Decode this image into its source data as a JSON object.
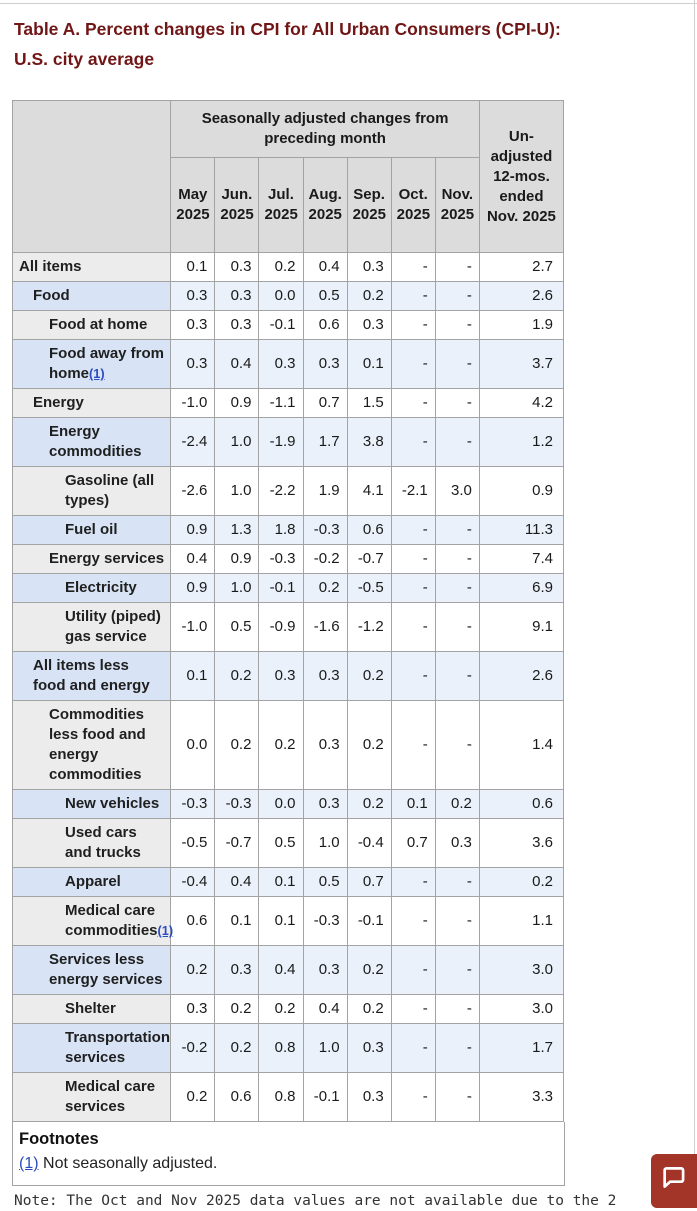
{
  "page": {
    "title_line1": "Table A. Percent changes in CPI for All Urban Consumers (CPI-U):",
    "title_line2": "U.S. city average",
    "note_line": "Note: The Oct and Nov 2025 data values are not available due to the 2"
  },
  "table": {
    "header": {
      "group_label": "Seasonally adjusted changes from preceding month",
      "unadjusted_label": "Un-adjusted 12-mos. ended Nov. 2025",
      "months": [
        "May 2025",
        "Jun. 2025",
        "Jul. 2025",
        "Aug. 2025",
        "Sep. 2025",
        "Oct. 2025",
        "Nov. 2025"
      ]
    },
    "rows": [
      {
        "label": "All items",
        "indent": 0,
        "values": [
          "0.1",
          "0.3",
          "0.2",
          "0.4",
          "0.3",
          "-",
          "-"
        ],
        "yoy": "2.7"
      },
      {
        "label": "Food",
        "indent": 1,
        "values": [
          "0.3",
          "0.3",
          "0.0",
          "0.5",
          "0.2",
          "-",
          "-"
        ],
        "yoy": "2.6"
      },
      {
        "label": "Food at home",
        "indent": 2,
        "values": [
          "0.3",
          "0.3",
          "-0.1",
          "0.6",
          "0.3",
          "-",
          "-"
        ],
        "yoy": "1.9"
      },
      {
        "label": "Food away from home",
        "footnote_ref": "(1)",
        "indent": 2,
        "values": [
          "0.3",
          "0.4",
          "0.3",
          "0.3",
          "0.1",
          "-",
          "-"
        ],
        "yoy": "3.7"
      },
      {
        "label": "Energy",
        "indent": 1,
        "values": [
          "-1.0",
          "0.9",
          "-1.1",
          "0.7",
          "1.5",
          "-",
          "-"
        ],
        "yoy": "4.2"
      },
      {
        "label": "Energy commodities",
        "indent": 2,
        "values": [
          "-2.4",
          "1.0",
          "-1.9",
          "1.7",
          "3.8",
          "-",
          "-"
        ],
        "yoy": "1.2"
      },
      {
        "label": "Gasoline (all types)",
        "indent": 3,
        "values": [
          "-2.6",
          "1.0",
          "-2.2",
          "1.9",
          "4.1",
          "-2.1",
          "3.0"
        ],
        "yoy": "0.9"
      },
      {
        "label": "Fuel oil",
        "indent": 3,
        "values": [
          "0.9",
          "1.3",
          "1.8",
          "-0.3",
          "0.6",
          "-",
          "-"
        ],
        "yoy": "11.3"
      },
      {
        "label": "Energy services",
        "indent": 2,
        "values": [
          "0.4",
          "0.9",
          "-0.3",
          "-0.2",
          "-0.7",
          "-",
          "-"
        ],
        "yoy": "7.4"
      },
      {
        "label": "Electricity",
        "indent": 3,
        "values": [
          "0.9",
          "1.0",
          "-0.1",
          "0.2",
          "-0.5",
          "-",
          "-"
        ],
        "yoy": "6.9"
      },
      {
        "label": "Utility (piped) gas service",
        "indent": 3,
        "values": [
          "-1.0",
          "0.5",
          "-0.9",
          "-1.6",
          "-1.2",
          "-",
          "-"
        ],
        "yoy": "9.1"
      },
      {
        "label": "All items less food and energy",
        "indent": 1,
        "values": [
          "0.1",
          "0.2",
          "0.3",
          "0.3",
          "0.2",
          "-",
          "-"
        ],
        "yoy": "2.6"
      },
      {
        "label": "Commodities less food and energy commodities",
        "indent": 2,
        "values": [
          "0.0",
          "0.2",
          "0.2",
          "0.3",
          "0.2",
          "-",
          "-"
        ],
        "yoy": "1.4"
      },
      {
        "label": "New vehicles",
        "indent": 3,
        "values": [
          "-0.3",
          "-0.3",
          "0.0",
          "0.3",
          "0.2",
          "0.1",
          "0.2"
        ],
        "yoy": "0.6"
      },
      {
        "label": "Used cars and trucks",
        "indent": 3,
        "values": [
          "-0.5",
          "-0.7",
          "0.5",
          "1.0",
          "-0.4",
          "0.7",
          "0.3"
        ],
        "yoy": "3.6"
      },
      {
        "label": "Apparel",
        "indent": 3,
        "values": [
          "-0.4",
          "0.4",
          "0.1",
          "0.5",
          "0.7",
          "-",
          "-"
        ],
        "yoy": "0.2"
      },
      {
        "label": "Medical care commodities",
        "footnote_ref": "(1)",
        "indent": 3,
        "values": [
          "0.6",
          "0.1",
          "0.1",
          "-0.3",
          "-0.1",
          "-",
          "-"
        ],
        "yoy": "1.1"
      },
      {
        "label": "Services less energy services",
        "indent": 2,
        "values": [
          "0.2",
          "0.3",
          "0.4",
          "0.3",
          "0.2",
          "-",
          "-"
        ],
        "yoy": "3.0"
      },
      {
        "label": "Shelter",
        "indent": 3,
        "values": [
          "0.3",
          "0.2",
          "0.2",
          "0.4",
          "0.2",
          "-",
          "-"
        ],
        "yoy": "3.0"
      },
      {
        "label": "Transportation services",
        "indent": 3,
        "values": [
          "-0.2",
          "0.2",
          "0.8",
          "1.0",
          "0.3",
          "-",
          "-"
        ],
        "yoy": "1.7"
      },
      {
        "label": "Medical care services",
        "indent": 3,
        "values": [
          "0.2",
          "0.6",
          "0.8",
          "-0.1",
          "0.3",
          "-",
          "-"
        ],
        "yoy": "3.3"
      }
    ]
  },
  "footnotes": {
    "heading": "Footnotes",
    "ref": "(1)",
    "text": "Not seasonally adjusted."
  },
  "colors": {
    "title": "#701616",
    "header_bg": "#dcdcdc",
    "row_gray_label": "#ececec",
    "row_blue_label": "#d8e4f6",
    "row_blue_data": "#eaf1fa",
    "link": "#2a4cc0",
    "chat_button": "#a23527"
  }
}
